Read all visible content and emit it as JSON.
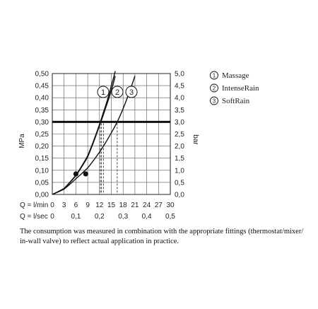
{
  "chart_data": {
    "type": "line",
    "y_left": {
      "label": "MPa",
      "range": [
        0,
        0.5
      ],
      "ticks": [
        "0,00",
        "0,05",
        "0,10",
        "0,15",
        "0,20",
        "0,25",
        "0,30",
        "0,35",
        "0,40",
        "0,45",
        "0,50"
      ]
    },
    "y_right": {
      "label": "bar",
      "range": [
        0,
        5
      ],
      "ticks": [
        "0,0",
        "0,5",
        "1,0",
        "1,5",
        "2,0",
        "2,5",
        "3,0",
        "3,5",
        "4,0",
        "4,5",
        "5,0"
      ]
    },
    "x_rows": [
      {
        "label": "Q = l/min",
        "range": [
          0,
          30
        ],
        "ticks": [
          "0",
          "3",
          "6",
          "9",
          "12",
          "15",
          "18",
          "21",
          "24",
          "27",
          "30"
        ]
      },
      {
        "label": "Q = l/sec",
        "range": [
          0,
          0.5
        ],
        "ticks": [
          "0",
          "0,1",
          "0,2",
          "0,3",
          "0,4",
          "0,5"
        ]
      }
    ],
    "grid": true,
    "reference_line": {
      "y": 0.3
    },
    "series": [
      {
        "name": "Massage",
        "marker": "1",
        "x": [
          0,
          3,
          6,
          9,
          12,
          13,
          14,
          15,
          16
        ],
        "y": [
          0,
          0.025,
          0.08,
          0.16,
          0.29,
          0.34,
          0.39,
          0.45,
          0.51
        ]
      },
      {
        "name": "IntenseRain",
        "marker": "2",
        "x": [
          0,
          3,
          6,
          9,
          12,
          13.5,
          15,
          16
        ],
        "y": [
          0,
          0.024,
          0.078,
          0.155,
          0.285,
          0.355,
          0.43,
          0.49
        ]
      },
      {
        "name": "SoftRain",
        "marker": "3",
        "x": [
          0,
          3,
          6,
          9,
          12,
          15,
          16.5,
          18,
          19.5,
          21
        ],
        "y": [
          0,
          0.022,
          0.065,
          0.11,
          0.175,
          0.255,
          0.3,
          0.355,
          0.42,
          0.49
        ]
      }
    ],
    "dots": [
      {
        "x": 6,
        "y": 0.085
      },
      {
        "x": 8.5,
        "y": 0.085
      }
    ],
    "dashed_x": [
      12.2,
      12.5,
      13.0,
      16.5
    ],
    "legend_position": "top-right"
  },
  "footnote": "The consumption was measured in combination with the appropriate fittings (thermostat/mixer/ in-wall valve) to reflect actual application in practice."
}
